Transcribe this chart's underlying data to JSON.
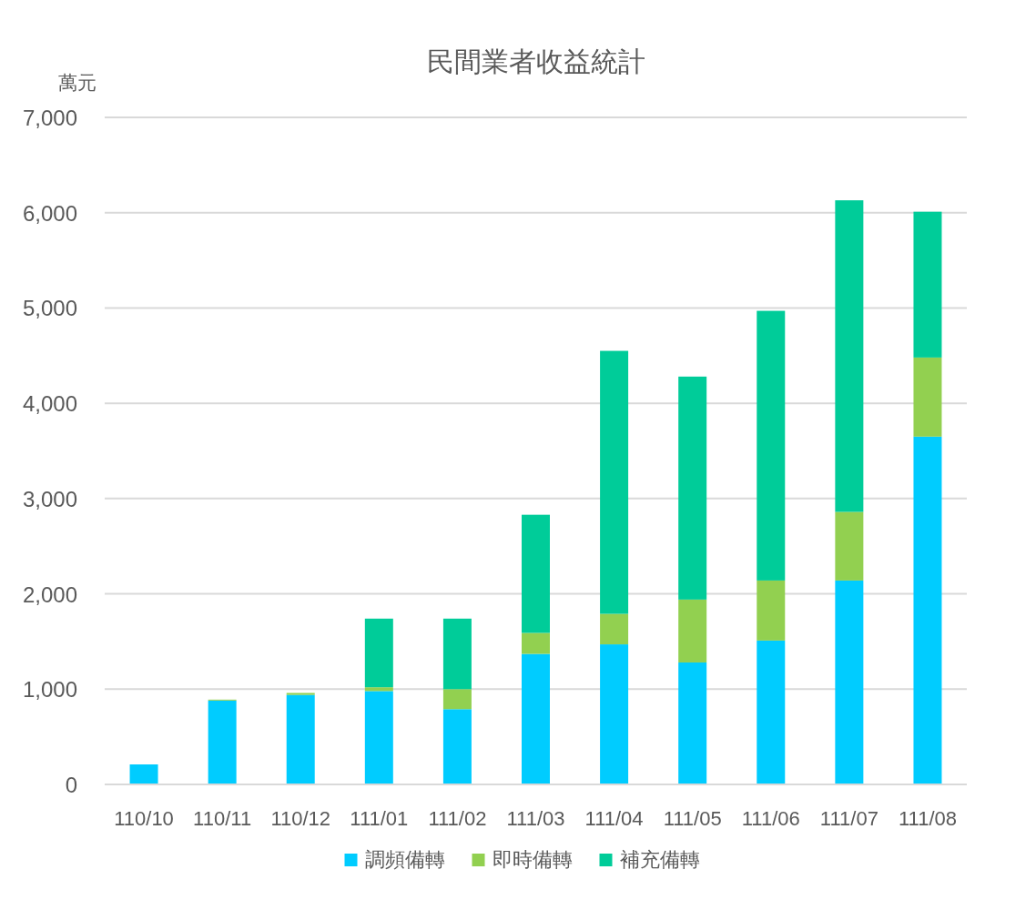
{
  "chart_data": {
    "type": "bar",
    "title": "民間業者收益統計",
    "ylabel": "萬元",
    "categories": [
      "110/10",
      "110/11",
      "110/12",
      "111/01",
      "111/02",
      "111/03",
      "111/04",
      "111/05",
      "111/06",
      "111/07",
      "111/08"
    ],
    "series": [
      {
        "name": "調頻備轉",
        "color": "#00ccff",
        "values": [
          210,
          880,
          940,
          980,
          790,
          1370,
          1470,
          1280,
          1510,
          2140,
          3650
        ]
      },
      {
        "name": "即時備轉",
        "color": "#92d050",
        "values": [
          0,
          10,
          20,
          40,
          210,
          220,
          320,
          660,
          630,
          720,
          830
        ]
      },
      {
        "name": "補充備轉",
        "color": "#00cc99",
        "values": [
          0,
          0,
          0,
          720,
          740,
          1240,
          2760,
          2340,
          2830,
          3270,
          1530
        ]
      }
    ],
    "stacked": true,
    "ylim": [
      0,
      7000
    ],
    "yticks": [
      0,
      {
        "value": 1000,
        "label": "1,000"
      },
      {
        "value": 2000,
        "label": "2,000"
      },
      {
        "value": 3000,
        "label": "3,000"
      },
      {
        "value": 4000,
        "label": "4,000"
      },
      {
        "value": 5000,
        "label": "5,000"
      },
      {
        "value": 6000,
        "label": "6,000"
      },
      {
        "value": 7000,
        "label": "7,000"
      }
    ],
    "grid": "y",
    "legend": "bottom"
  }
}
